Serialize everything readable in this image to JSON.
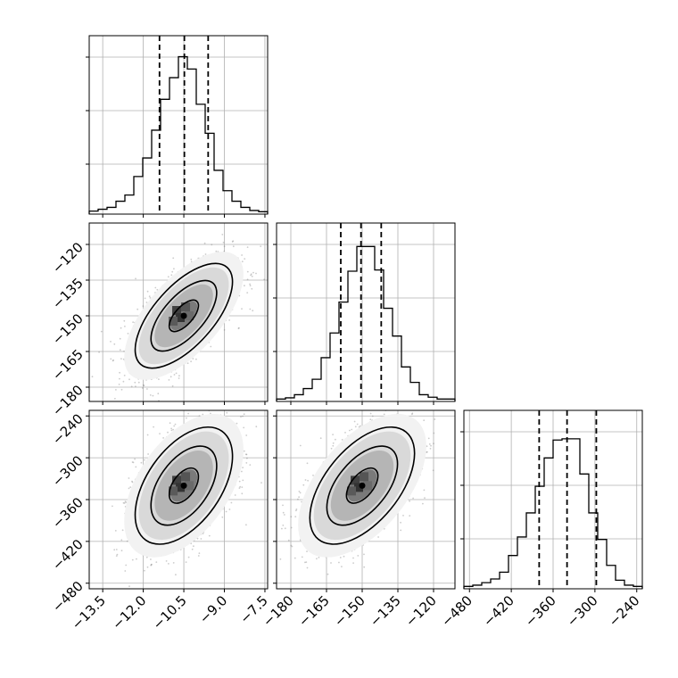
{
  "chart_data": {
    "type": "corner",
    "grid": true,
    "parameters": [
      {
        "index": 0,
        "range": [
          -14.0,
          -7.4
        ],
        "ticks": [
          -13.5,
          -12.0,
          -10.5,
          -9.0,
          -7.5
        ],
        "tick_labels": [
          "−13.5",
          "−12.0",
          "−10.5",
          "−9.0",
          "−7.5"
        ]
      },
      {
        "index": 1,
        "range": [
          -186,
          -111
        ],
        "ticks": [
          -120,
          -135,
          -150,
          -165,
          -180
        ],
        "tick_labels": [
          "−120",
          "−135",
          "−150",
          "−165",
          "−180"
        ]
      },
      {
        "index": 2,
        "range": [
          -488,
          -232
        ],
        "ticks": [
          -480,
          -420,
          -360,
          -300,
          -240
        ],
        "tick_labels": [
          "−480",
          "−420",
          "−360",
          "−300",
          "−240"
        ]
      }
    ],
    "histograms": [
      {
        "param": 0,
        "quantiles": [
          -11.4,
          -10.48,
          -9.6
        ],
        "bin_edges": [
          -14.0,
          -13.67,
          -13.34,
          -13.01,
          -12.68,
          -12.35,
          -12.02,
          -11.69,
          -11.36,
          -11.03,
          -10.7,
          -10.37,
          -10.04,
          -9.71,
          -9.38,
          -9.05,
          -8.72,
          -8.39,
          -8.06,
          -7.73,
          -7.4
        ],
        "counts": [
          2,
          5,
          8,
          18,
          28,
          58,
          88,
          133,
          183,
          218,
          252,
          232,
          175,
          128,
          68,
          35,
          18,
          8,
          3,
          1
        ],
        "ymax": 260
      },
      {
        "param": 1,
        "quantiles": [
          -159,
          -150.5,
          -142
        ],
        "bin_edges": [
          -186.0,
          -182.25,
          -178.5,
          -174.75,
          -171.0,
          -167.25,
          -163.5,
          -159.75,
          -156.0,
          -152.25,
          -148.5,
          -144.75,
          -141.0,
          -137.25,
          -133.5,
          -129.75,
          -126.0,
          -122.25,
          -118.5,
          -114.75,
          -111.0
        ],
        "counts": [
          1,
          3,
          8,
          18,
          33,
          68,
          108,
          158,
          208,
          248,
          248,
          210,
          148,
          103,
          53,
          28,
          8,
          4,
          1,
          1
        ],
        "ymax": 260
      },
      {
        "param": 2,
        "quantiles": [
          -380,
          -340,
          -298
        ],
        "bin_edges": [
          -488.0,
          -475.2,
          -462.4,
          -449.6,
          -436.8,
          -424.0,
          -411.2,
          -398.4,
          -385.6,
          -372.8,
          -360.0,
          -347.2,
          -334.4,
          -321.6,
          -308.8,
          -296.0,
          -283.2,
          -270.4,
          -257.6,
          -244.8,
          -232.0
        ],
        "counts": [
          1,
          3,
          7,
          13,
          24,
          51,
          81,
          120,
          163,
          209,
          238,
          240,
          240,
          183,
          120,
          77,
          35,
          11,
          3,
          1
        ],
        "ymax": 260
      }
    ],
    "scatter_panels": [
      {
        "x_param": 0,
        "y_param": 1,
        "center": [
          -10.5,
          -150
        ],
        "sd": [
          0.9,
          11
        ],
        "corr": 0.65
      },
      {
        "x_param": 0,
        "y_param": 2,
        "center": [
          -10.5,
          -340
        ],
        "sd": [
          0.9,
          42
        ],
        "corr": 0.5
      },
      {
        "x_param": 1,
        "y_param": 2,
        "center": [
          -150,
          -340
        ],
        "sd": [
          11,
          42
        ],
        "corr": 0.55
      }
    ]
  }
}
